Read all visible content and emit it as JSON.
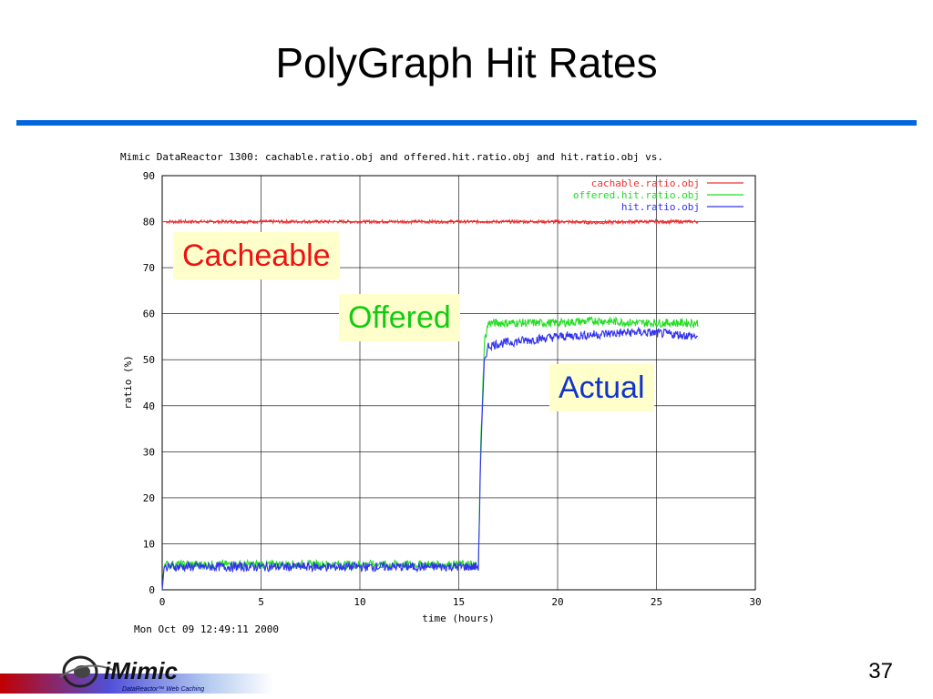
{
  "slide": {
    "title": "PolyGraph Hit Rates",
    "page_number": "37",
    "logo_text": "iMimic",
    "logo_tagline": "DataReactor™ Web Caching"
  },
  "callouts": {
    "cacheable": "Cacheable",
    "offered": "Offered",
    "actual": "Actual"
  },
  "colors": {
    "title_rule": "#0066dd",
    "cacheable": "#ee3333",
    "offered": "#22dd22",
    "actual": "#3333ee",
    "callout_bg": "#ffffcc"
  },
  "chart_data": {
    "type": "line",
    "title": "Mimic DataReactor 1300: cachable.ratio.obj and offered.hit.ratio.obj and hit.ratio.obj vs.",
    "xlabel": "time (hours)",
    "ylabel": "ratio (%)",
    "timestamp": "Mon Oct 09 12:49:11 2000",
    "xlim": [
      0,
      30
    ],
    "ylim": [
      0,
      90
    ],
    "xticks": [
      0,
      5,
      10,
      15,
      20,
      25,
      30
    ],
    "yticks": [
      0,
      10,
      20,
      30,
      40,
      50,
      60,
      70,
      80,
      90
    ],
    "grid": true,
    "legend_position": "top-right",
    "series": [
      {
        "name": "cachable.ratio.obj",
        "color": "#ee3333",
        "x": [
          0,
          2,
          4,
          6,
          8,
          10,
          12,
          14,
          16,
          18,
          20,
          22,
          24,
          26,
          27.1
        ],
        "y": [
          80,
          80,
          80,
          80,
          80,
          80,
          80,
          80,
          80,
          80,
          80,
          79.8,
          80,
          80,
          80
        ]
      },
      {
        "name": "offered.hit.ratio.obj",
        "color": "#22dd22",
        "x": [
          0,
          0.1,
          2,
          4,
          6,
          8,
          10,
          12,
          14,
          16,
          16.1,
          16.3,
          16.5,
          17,
          18,
          20,
          22,
          24,
          26,
          27.1
        ],
        "y": [
          0,
          5.5,
          5.5,
          5.5,
          5.5,
          5.5,
          5.5,
          5.5,
          5.5,
          5.5,
          30,
          54,
          58,
          58,
          58,
          58,
          58.5,
          58,
          58,
          58
        ]
      },
      {
        "name": "hit.ratio.obj",
        "color": "#3333ee",
        "x": [
          0,
          0.1,
          2,
          4,
          6,
          8,
          10,
          12,
          14,
          16,
          16.1,
          16.3,
          16.5,
          17,
          18,
          19,
          20,
          22,
          24,
          26,
          27.1
        ],
        "y": [
          0,
          5,
          5,
          5,
          5,
          5,
          5,
          5,
          5,
          5,
          28,
          50,
          53,
          53.5,
          54,
          54.5,
          55,
          55.5,
          56,
          55.5,
          55
        ]
      }
    ]
  }
}
